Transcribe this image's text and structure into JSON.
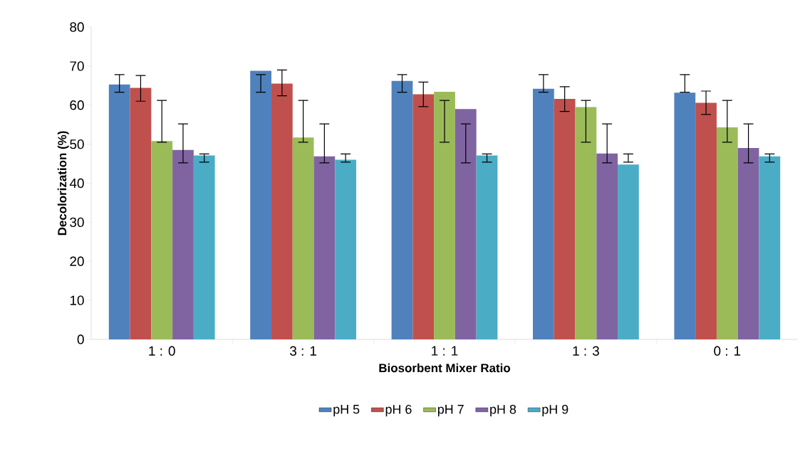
{
  "chart_data": {
    "type": "bar",
    "xlabel": "Biosorbent Mixer Ratio",
    "ylabel": "Decolorization (%)",
    "categories": [
      "1 : 0",
      "3 : 1",
      "1 : 1",
      "1 : 3",
      "0 : 1"
    ],
    "ylim": [
      0,
      80
    ],
    "yticks": [
      0,
      10,
      20,
      30,
      40,
      50,
      60,
      70,
      80
    ],
    "grid": false,
    "legend": "bottom",
    "series": [
      {
        "name": "pH 5",
        "color": "#4f81bd",
        "values": [
          65.3,
          68.8,
          66.2,
          64.2,
          63.2
        ],
        "errors": [
          [
            63.3,
            67.8
          ],
          [
            63.3,
            67.8
          ],
          [
            63.3,
            67.8
          ],
          [
            63.3,
            67.8
          ],
          [
            63.3,
            67.8
          ]
        ]
      },
      {
        "name": "pH 6",
        "color": "#c0504d",
        "values": [
          64.4,
          65.5,
          62.8,
          61.6,
          60.6
        ],
        "errors": [
          [
            61.0,
            67.6
          ],
          [
            62.4,
            69.0
          ],
          [
            59.6,
            65.9
          ],
          [
            58.4,
            64.7
          ],
          [
            57.6,
            63.6
          ]
        ]
      },
      {
        "name": "pH 7",
        "color": "#9bbb59",
        "values": [
          50.8,
          51.7,
          63.4,
          59.5,
          54.3
        ],
        "errors": [
          [
            50.5,
            61.2
          ],
          [
            50.5,
            61.2
          ],
          [
            50.5,
            61.2
          ],
          [
            50.5,
            61.2
          ],
          [
            50.5,
            61.2
          ]
        ]
      },
      {
        "name": "pH 8",
        "color": "#8064a2",
        "values": [
          48.5,
          46.9,
          59.0,
          47.6,
          49.0
        ],
        "errors": [
          [
            45.2,
            55.2
          ],
          [
            45.2,
            55.2
          ],
          [
            45.2,
            55.2
          ],
          [
            45.2,
            55.2
          ],
          [
            45.2,
            55.2
          ]
        ]
      },
      {
        "name": "pH 9",
        "color": "#4bacc6",
        "values": [
          47.1,
          46.0,
          47.1,
          44.8,
          46.9
        ],
        "errors": [
          [
            45.4,
            47.5
          ],
          [
            45.4,
            47.5
          ],
          [
            45.4,
            47.5
          ],
          [
            45.4,
            47.5
          ],
          [
            45.4,
            47.5
          ]
        ]
      }
    ]
  }
}
